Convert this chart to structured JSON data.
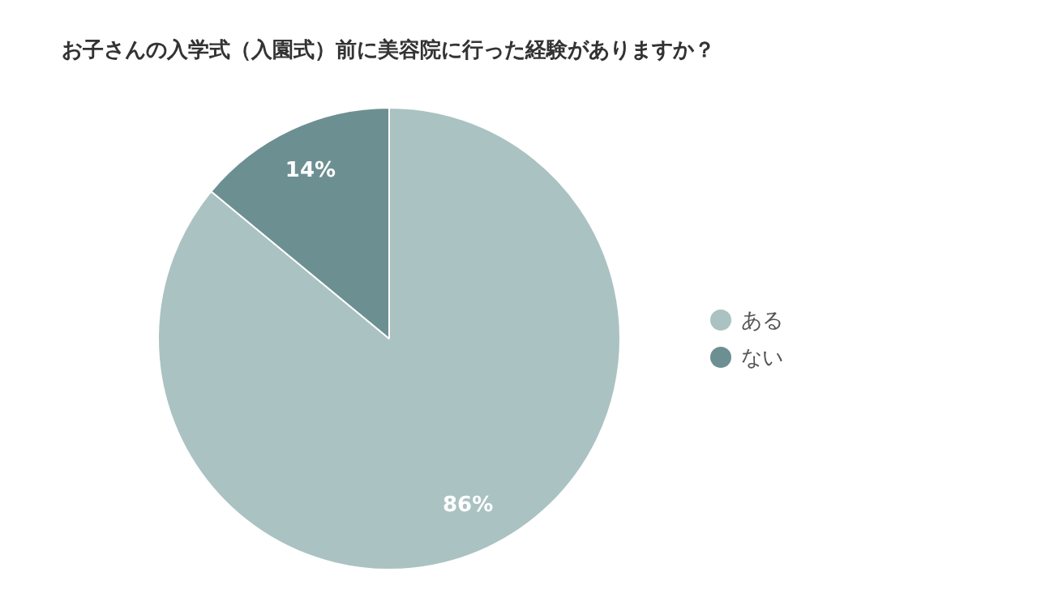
{
  "chart_data": {
    "type": "pie",
    "title": "お子さんの入学式（入園式）前に美容院に行った経験がありますか？",
    "categories": [
      "ある",
      "ない"
    ],
    "values": [
      86,
      14
    ],
    "colors": [
      "#aac2c2",
      "#6c8f92"
    ],
    "value_labels": [
      "86%",
      "14%"
    ],
    "legend": "right"
  }
}
